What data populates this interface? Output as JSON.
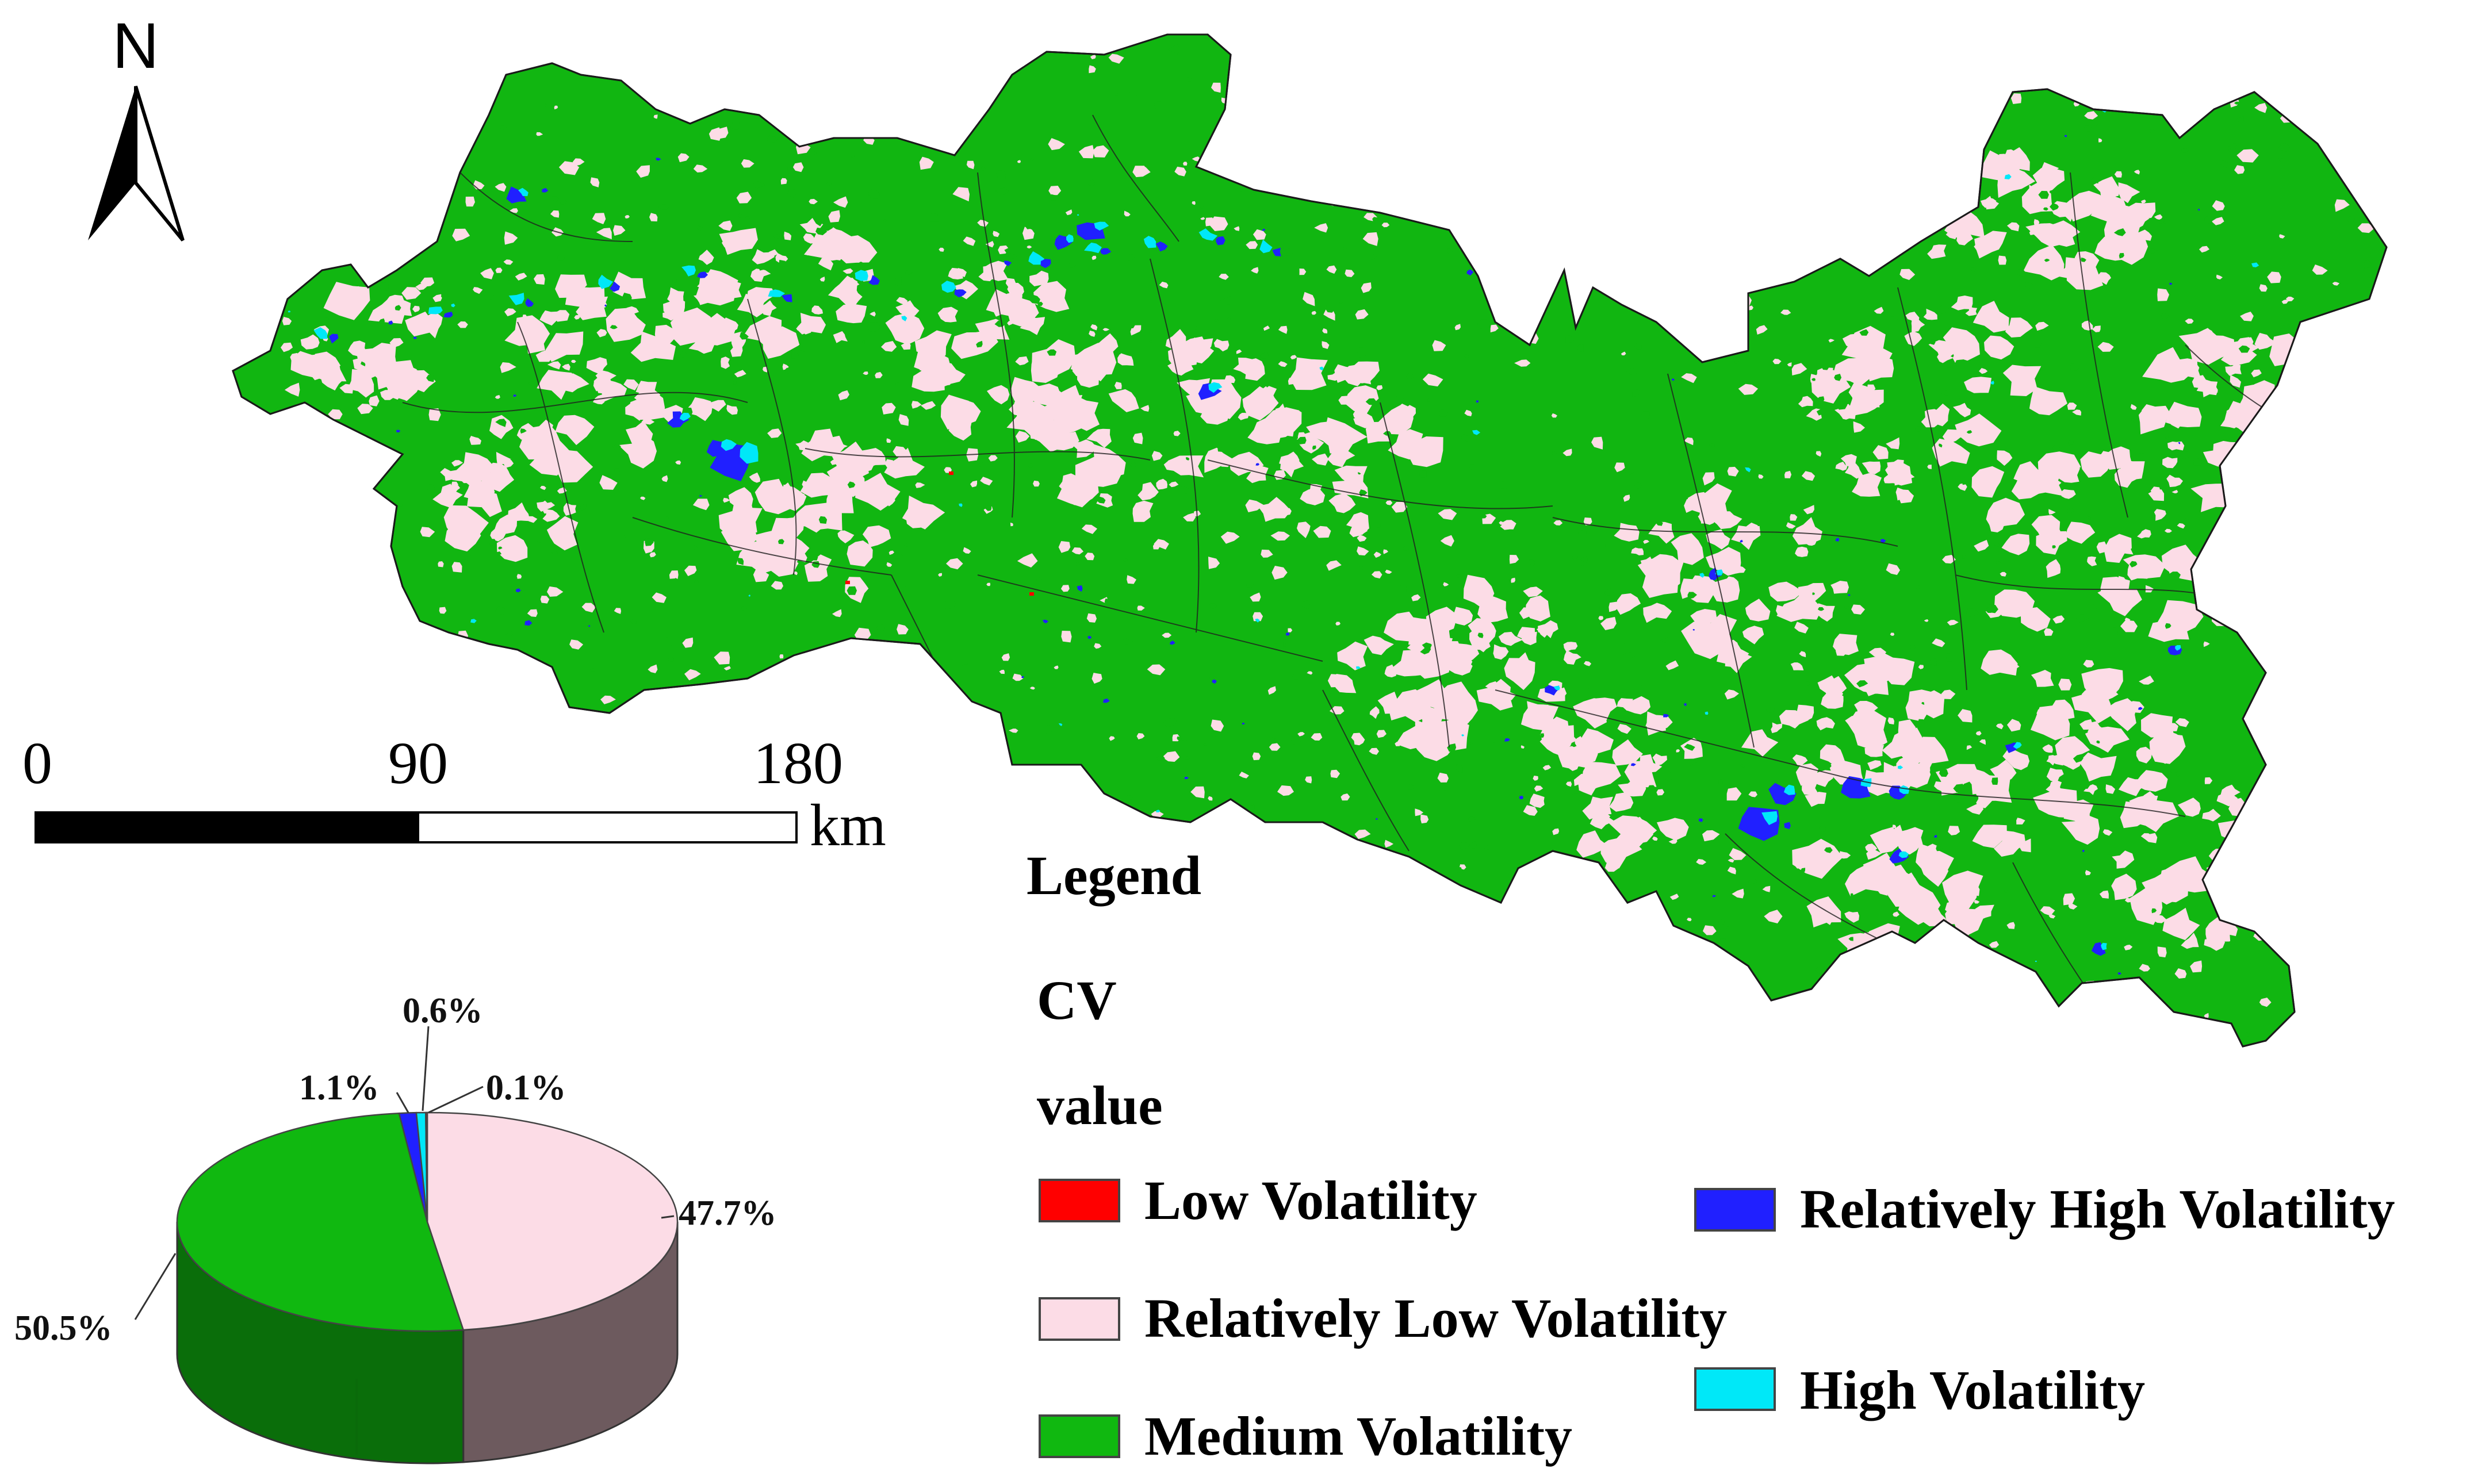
{
  "north_arrow": {
    "label": "N"
  },
  "scale_bar": {
    "ticks": [
      "0",
      "90",
      "180"
    ],
    "unit": "km"
  },
  "legend": {
    "heading": "Legend",
    "field": "CV",
    "subfield": "value",
    "items": [
      {
        "label": "Low Volatility",
        "color": "#ff0000"
      },
      {
        "label": "Relatively Low Volatility",
        "color": "#fcdce6"
      },
      {
        "label": "Medium Volatility",
        "color": "#10b810"
      },
      {
        "label": "Relatively High Volatility",
        "color": "#2020ff"
      },
      {
        "label": "High Volatility",
        "color": "#00e8f8"
      }
    ]
  },
  "chart_data": {
    "type": "pie",
    "style": "3d",
    "slices": [
      {
        "category": "Relatively Low Volatility",
        "value": 47.7,
        "label": "47.7%",
        "color": "#fcdce6"
      },
      {
        "category": "Medium Volatility",
        "value": 50.5,
        "label": "50.5%",
        "color": "#10b810"
      },
      {
        "category": "Relatively High Volatility",
        "value": 1.1,
        "label": "1.1%",
        "color": "#2020ff"
      },
      {
        "category": "High Volatility",
        "value": 0.6,
        "label": "0.6%",
        "color": "#00e8f8"
      },
      {
        "category": "Low Volatility",
        "value": 0.1,
        "label": "0.1%",
        "color": "#ff0000"
      }
    ]
  }
}
